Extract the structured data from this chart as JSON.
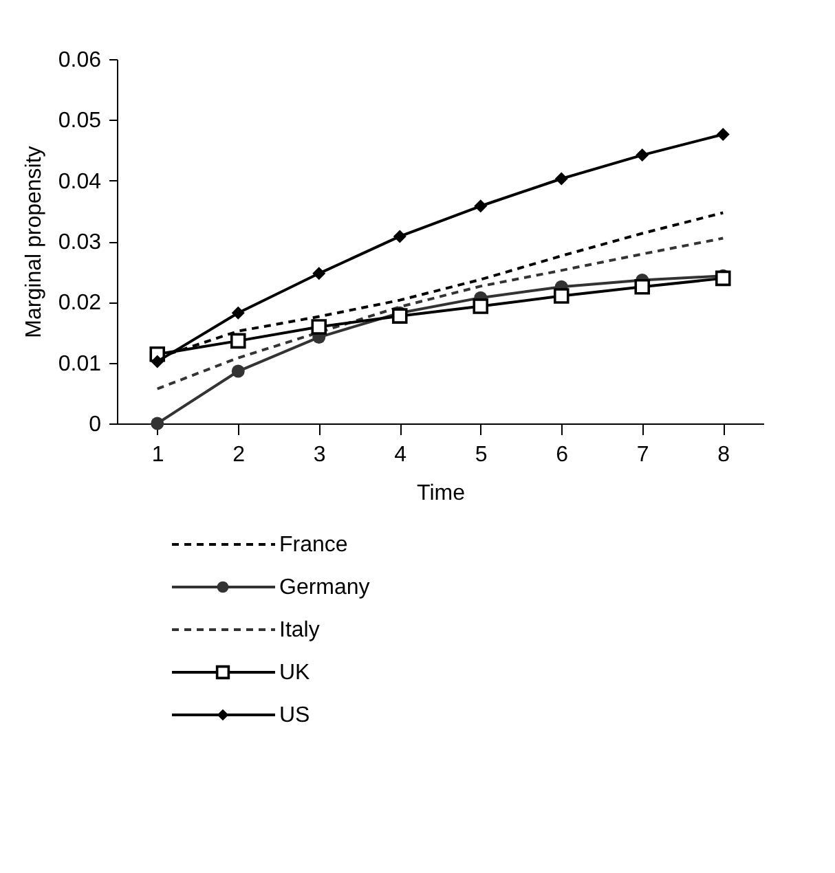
{
  "chart_data": {
    "type": "line",
    "xlabel": "Time",
    "ylabel": "Marginal propensity",
    "x": [
      1,
      2,
      3,
      4,
      5,
      6,
      7,
      8
    ],
    "series": [
      {
        "name": "France",
        "color": "#000000",
        "line_style": "dashed",
        "marker": "none",
        "values": [
          0.0108,
          0.0152,
          0.0176,
          0.0203,
          0.0237,
          0.0276,
          0.0313,
          0.0347
        ]
      },
      {
        "name": "Germany",
        "color": "#333333",
        "line_style": "solid",
        "marker": "circle",
        "values": [
          0,
          0.0086,
          0.0142,
          0.0182,
          0.0207,
          0.0225,
          0.0236,
          0.0243
        ]
      },
      {
        "name": "Italy",
        "color": "#333333",
        "line_style": "dashed",
        "marker": "none",
        "values": [
          0.0057,
          0.0108,
          0.015,
          0.0192,
          0.0226,
          0.0252,
          0.0279,
          0.0305
        ]
      },
      {
        "name": "UK",
        "color": "#000000",
        "line_style": "solid",
        "marker": "square",
        "values": [
          0.0114,
          0.0136,
          0.0159,
          0.0177,
          0.0193,
          0.021,
          0.0225,
          0.0239
        ]
      },
      {
        "name": "US",
        "color": "#000000",
        "line_style": "solid",
        "marker": "diamond",
        "values": [
          0.0102,
          0.0182,
          0.0247,
          0.0308,
          0.0358,
          0.0403,
          0.0442,
          0.0476
        ]
      }
    ],
    "xlim": [
      0.5,
      8.5
    ],
    "xticks": [
      1,
      2,
      3,
      4,
      5,
      6,
      7,
      8
    ],
    "ylim": [
      0,
      0.06
    ],
    "yticks": [
      0,
      0.01,
      0.02,
      0.03,
      0.04,
      0.05,
      0.06
    ],
    "grid": false,
    "legend": "bottom"
  }
}
